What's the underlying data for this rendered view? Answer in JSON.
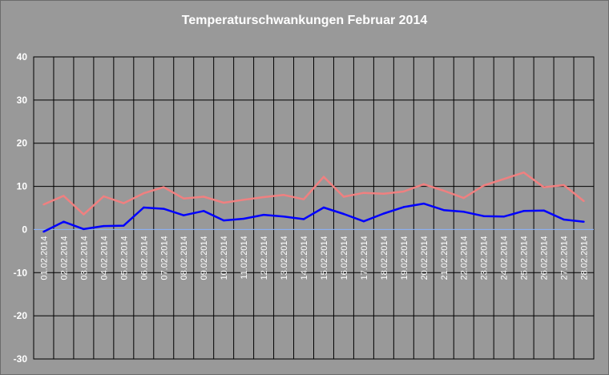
{
  "chart_data": {
    "type": "line",
    "title": "Temperaturschwankungen Februar 2014",
    "xlabel": "",
    "ylabel": "",
    "ylim": [
      -30,
      40
    ],
    "yticks": [
      40,
      30,
      20,
      10,
      0,
      -10,
      -20,
      -30
    ],
    "grid": true,
    "legend": "none",
    "categories": [
      "01.02.2014",
      "02.02.2014",
      "03.02.2014",
      "04.02.2014",
      "05.02.2014",
      "06.02.2014",
      "07.02.2014",
      "08.02.2014",
      "09.02.2014",
      "10.02.2014",
      "11.02.2014",
      "12.02.2014",
      "13.02.2014",
      "14.02.2014",
      "15.02.2014",
      "16.02.2014",
      "17.02.2014",
      "18.02.2014",
      "19.02.2014",
      "20.02.2014",
      "21.02.2014",
      "22.02.2014",
      "23.02.2014",
      "24.02.2014",
      "25.02.2014",
      "26.02.2014",
      "27.02.2014",
      "28.02.2014"
    ],
    "series": [
      {
        "color": "#f08080",
        "values": [
          5.8,
          7.8,
          3.5,
          7.7,
          6.1,
          8.4,
          9.8,
          7.2,
          7.6,
          6.2,
          6.9,
          7.5,
          8.0,
          7.0,
          12.2,
          7.6,
          8.5,
          8.3,
          8.8,
          10.5,
          9.0,
          7.3,
          10.2,
          11.7,
          13.2,
          9.8,
          10.3,
          6.6
        ]
      },
      {
        "color": "#0000ff",
        "values": [
          -0.5,
          1.8,
          0.1,
          0.8,
          0.9,
          5.1,
          4.8,
          3.3,
          4.3,
          2.1,
          2.5,
          3.4,
          3.0,
          2.4,
          5.1,
          3.6,
          1.9,
          3.7,
          5.2,
          6.0,
          4.5,
          4.1,
          3.1,
          3.0,
          4.3,
          4.4,
          2.3,
          1.8
        ]
      }
    ],
    "zero_line_color": "#8ab4ff"
  }
}
